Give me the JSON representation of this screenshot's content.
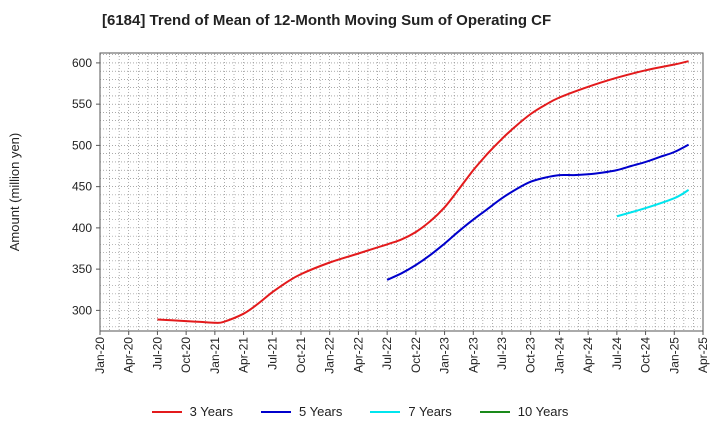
{
  "chart_data": {
    "type": "line",
    "title": "[6184]  Trend of Mean of 12-Month Moving Sum of Operating CF",
    "xlabel": "",
    "ylabel": "Amount (million yen)",
    "ylim": [
      275,
      612
    ],
    "yticks": [
      300,
      350,
      400,
      450,
      500,
      550,
      600
    ],
    "x_tick_labels": [
      "Jan-20",
      "Apr-20",
      "Jul-20",
      "Oct-20",
      "Jan-21",
      "Apr-21",
      "Jul-21",
      "Oct-21",
      "Jan-22",
      "Apr-22",
      "Jul-22",
      "Oct-22",
      "Jan-23",
      "Apr-23",
      "Jul-23",
      "Oct-23",
      "Jan-24",
      "Apr-24",
      "Jul-24",
      "Oct-24",
      "Jan-25",
      "Apr-25"
    ],
    "x_range_quarters": [
      0,
      21
    ],
    "grid": true,
    "legend_position": "bottom",
    "series": [
      {
        "name": "3 Years",
        "color": "#e31a1c",
        "points": [
          [
            2,
            289
          ],
          [
            2.5,
            288
          ],
          [
            3,
            287
          ],
          [
            3.5,
            286
          ],
          [
            4,
            285
          ],
          [
            4.3,
            286
          ],
          [
            5,
            296
          ],
          [
            5.5,
            308
          ],
          [
            6,
            322
          ],
          [
            6.5,
            334
          ],
          [
            7,
            344
          ],
          [
            8,
            358
          ],
          [
            9,
            369
          ],
          [
            10,
            380
          ],
          [
            10.5,
            386
          ],
          [
            11,
            395
          ],
          [
            11.5,
            408
          ],
          [
            12,
            425
          ],
          [
            12.5,
            447
          ],
          [
            13,
            470
          ],
          [
            13.5,
            490
          ],
          [
            14,
            508
          ],
          [
            14.5,
            524
          ],
          [
            15,
            538
          ],
          [
            15.5,
            549
          ],
          [
            16,
            558
          ],
          [
            17,
            571
          ],
          [
            18,
            582
          ],
          [
            19,
            591
          ],
          [
            20,
            598
          ],
          [
            20.5,
            602
          ]
        ]
      },
      {
        "name": "5 Years",
        "color": "#0000cc",
        "points": [
          [
            10,
            337
          ],
          [
            10.5,
            345
          ],
          [
            11,
            355
          ],
          [
            11.5,
            367
          ],
          [
            12,
            381
          ],
          [
            12.5,
            396
          ],
          [
            13,
            410
          ],
          [
            13.5,
            423
          ],
          [
            14,
            436
          ],
          [
            14.5,
            447
          ],
          [
            15,
            456
          ],
          [
            15.5,
            461
          ],
          [
            16,
            464
          ],
          [
            16.5,
            464
          ],
          [
            17,
            465
          ],
          [
            17.5,
            467
          ],
          [
            18,
            470
          ],
          [
            18.5,
            475
          ],
          [
            19,
            480
          ],
          [
            19.5,
            486
          ],
          [
            20,
            492
          ],
          [
            20.5,
            501
          ]
        ]
      },
      {
        "name": "7 Years",
        "color": "#00e5ee",
        "points": [
          [
            18,
            414
          ],
          [
            19,
            424
          ],
          [
            20,
            436
          ],
          [
            20.5,
            446
          ]
        ]
      },
      {
        "name": "10 Years",
        "color": "#1a8a1a",
        "points": []
      }
    ]
  }
}
